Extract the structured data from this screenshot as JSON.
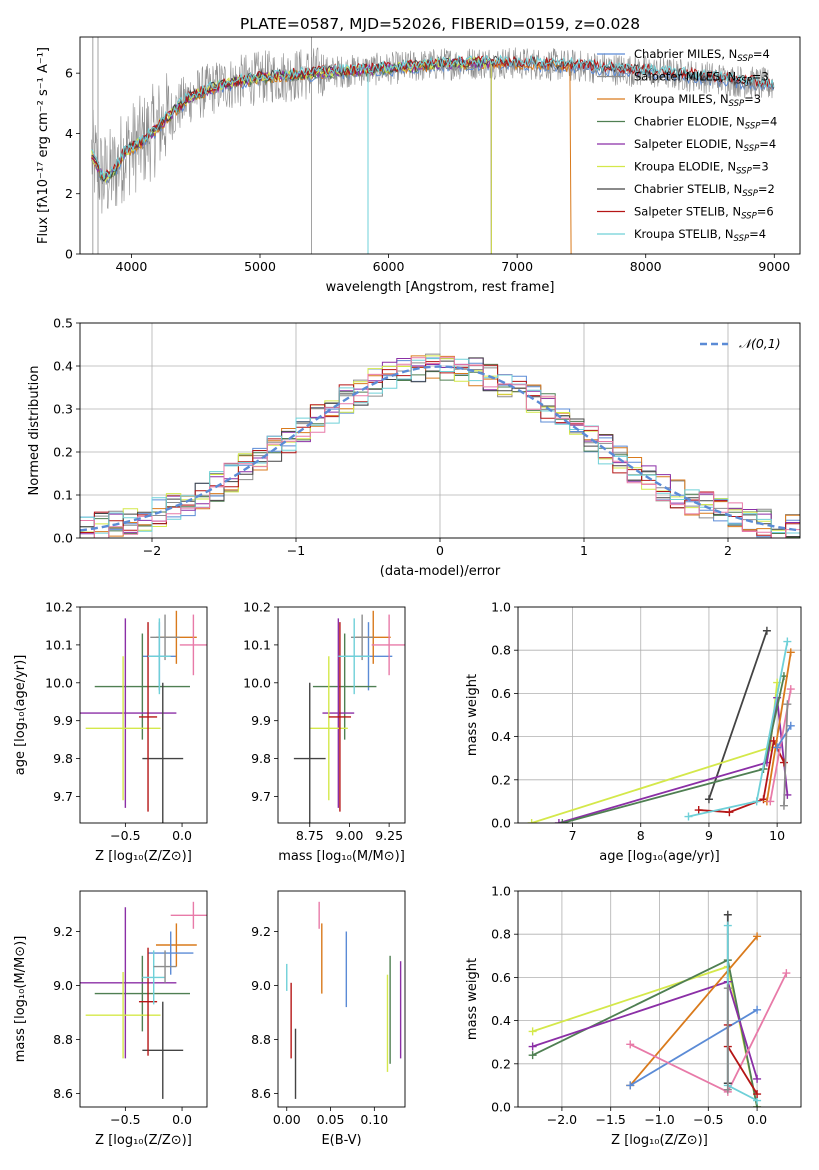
{
  "figure": {
    "title": "PLATE=0587, MJD=52026, FIBERID=0159, z=0.028"
  },
  "colors": {
    "chabrier_miles": "#5b8bd6",
    "salpeter_miles": "#8c8c8c",
    "kroupa_miles": "#d97a1c",
    "chabrier_elodie": "#4f7f52",
    "salpeter_elodie": "#8b2fa6",
    "kroupa_elodie": "#d4e84a",
    "chabrier_stelib": "#444444",
    "salpeter_stelib": "#b51616",
    "kroupa_stelib": "#6fd0d8",
    "pink": "#e87aa8",
    "normal": "#5b8bd6",
    "grid": "#b0b0b0"
  },
  "chart_data": [
    {
      "id": "spectrum",
      "type": "line",
      "xlabel": "wavelength [Angstrom, rest frame]",
      "ylabel": "Flux [fλ10⁻¹⁷ erg cm⁻² s⁻¹ A⁻¹]",
      "xlim": [
        3600,
        9200
      ],
      "ylim": [
        0,
        7.2
      ],
      "xticks": [
        4000,
        5000,
        6000,
        7000,
        8000,
        9000
      ],
      "yticks": [
        0,
        2,
        4,
        6
      ],
      "grid": false,
      "legend_position": "top-right",
      "continuum_knots": {
        "x": [
          3690,
          3780,
          3860,
          3950,
          4080,
          4250,
          4450,
          4700,
          5000,
          5300,
          5600,
          6000,
          6400,
          6800,
          7200,
          7600,
          8000,
          8400,
          8800,
          8990
        ],
        "y": [
          3.3,
          2.5,
          2.7,
          3.4,
          3.7,
          4.4,
          5.2,
          5.6,
          5.85,
          5.95,
          6.05,
          6.15,
          6.3,
          6.35,
          6.3,
          6.2,
          6.05,
          5.9,
          5.7,
          5.6
        ]
      },
      "series": [
        {
          "name": "Chabrier MILES, N",
          "sub": "SSP",
          "suffix": "=4",
          "color_key": "chabrier_miles",
          "xmax": 9000
        },
        {
          "name": "Salpeter MILES, N",
          "sub": "SSP",
          "suffix": "=3",
          "color_key": "salpeter_miles",
          "xmax": 9000
        },
        {
          "name": "Kroupa MILES, N",
          "sub": "SSP",
          "suffix": "=3",
          "color_key": "kroupa_miles",
          "xmax": 7420
        },
        {
          "name": "Chabrier ELODIE, N",
          "sub": "SSP",
          "suffix": "=4",
          "color_key": "chabrier_elodie",
          "xmax": 6800
        },
        {
          "name": "Salpeter ELODIE, N",
          "sub": "SSP",
          "suffix": "=4",
          "color_key": "salpeter_elodie",
          "xmax": 6800
        },
        {
          "name": "Kroupa ELODIE, N",
          "sub": "SSP",
          "suffix": "=3",
          "color_key": "kroupa_elodie",
          "xmax": 6800
        },
        {
          "name": "Chabrier STELIB, N",
          "sub": "SSP",
          "suffix": "=2",
          "color_key": "chabrier_stelib",
          "xmax": 9000
        },
        {
          "name": "Salpeter STELIB, N",
          "sub": "SSP",
          "suffix": "=6",
          "color_key": "salpeter_stelib",
          "xmax": 9000
        },
        {
          "name": "Kroupa STELIB, N",
          "sub": "SSP",
          "suffix": "=4",
          "color_key": "kroupa_stelib",
          "xmax": 9000
        }
      ]
    },
    {
      "id": "residuals",
      "type": "step",
      "xlabel": "(data-model)/error",
      "ylabel": "Normed distribution",
      "xlim": [
        -2.5,
        2.5
      ],
      "ylim": [
        0,
        0.5
      ],
      "xticks": [
        -2,
        -1,
        0,
        1,
        2
      ],
      "yticks": [
        0.0,
        0.1,
        0.2,
        0.3,
        0.4,
        0.5
      ],
      "grid": true,
      "legend_position": "top-right",
      "normal_label": "𝒩(0,1)",
      "bin_width": 0.1,
      "bin_start": -2.5
    },
    {
      "id": "age-vs-Z",
      "type": "errorbar",
      "xlabel": "Z [log₁₀(Z/Z⊙)]",
      "ylabel": "age  [log₁₀(age/yr)]",
      "xlim": [
        -0.9,
        0.22
      ],
      "ylim": [
        9.63,
        10.2
      ],
      "xticks": [
        -0.5,
        0.0
      ],
      "yticks": [
        9.7,
        9.8,
        9.9,
        10.0,
        10.1,
        10.2
      ],
      "points": [
        {
          "c": "chabrier_miles",
          "x": -0.2,
          "y": 10.07,
          "xe": 0.15,
          "ye": 0.09
        },
        {
          "c": "kroupa_miles",
          "x": -0.05,
          "y": 10.12,
          "xe": 0.18,
          "ye": 0.07
        },
        {
          "c": "pink",
          "x": 0.1,
          "y": 10.1,
          "xe": 0.12,
          "ye": 0.08
        },
        {
          "c": "salpeter_miles",
          "x": -0.15,
          "y": 10.12,
          "xe": 0.13,
          "ye": 0.06
        },
        {
          "c": "chabrier_elodie",
          "x": -0.35,
          "y": 9.99,
          "xe": 0.42,
          "ye": 0.14
        },
        {
          "c": "salpeter_elodie",
          "x": -0.5,
          "y": 9.92,
          "xe": 0.45,
          "ye": 0.25
        },
        {
          "c": "kroupa_elodie",
          "x": -0.52,
          "y": 9.88,
          "xe": 0.33,
          "ye": 0.19
        },
        {
          "c": "chabrier_stelib",
          "x": -0.17,
          "y": 9.8,
          "xe": 0.18,
          "ye": 0.2
        },
        {
          "c": "salpeter_stelib",
          "x": -0.3,
          "y": 9.91,
          "xe": 0.08,
          "ye": 0.25
        },
        {
          "c": "kroupa_stelib",
          "x": -0.2,
          "y": 10.07,
          "xe": 0.1,
          "ye": 0.1
        }
      ]
    },
    {
      "id": "age-vs-mass",
      "type": "errorbar",
      "xlabel": "mass [log₁₀(M/M⊙)]",
      "ylabel": "",
      "xlim": [
        8.55,
        9.35
      ],
      "ylim": [
        9.63,
        10.2
      ],
      "xticks": [
        8.75,
        9.0,
        9.25
      ],
      "yticks": [
        9.7,
        9.8,
        9.9,
        10.0,
        10.1,
        10.2
      ],
      "points": [
        {
          "c": "chabrier_miles",
          "x": 9.12,
          "y": 10.07,
          "xe": 0.15,
          "ye": 0.09
        },
        {
          "c": "kroupa_miles",
          "x": 9.15,
          "y": 10.12,
          "xe": 0.11,
          "ye": 0.07
        },
        {
          "c": "pink",
          "x": 9.25,
          "y": 10.1,
          "xe": 0.11,
          "ye": 0.08
        },
        {
          "c": "salpeter_miles",
          "x": 9.08,
          "y": 10.12,
          "xe": 0.07,
          "ye": 0.06
        },
        {
          "c": "chabrier_elodie",
          "x": 8.97,
          "y": 9.99,
          "xe": 0.2,
          "ye": 0.14
        },
        {
          "c": "salpeter_elodie",
          "x": 8.93,
          "y": 9.92,
          "xe": 0.1,
          "ye": 0.25
        },
        {
          "c": "kroupa_elodie",
          "x": 8.87,
          "y": 9.88,
          "xe": 0.12,
          "ye": 0.19
        },
        {
          "c": "chabrier_stelib",
          "x": 8.75,
          "y": 9.8,
          "xe": 0.1,
          "ye": 0.2
        },
        {
          "c": "salpeter_stelib",
          "x": 8.94,
          "y": 9.91,
          "xe": 0.07,
          "ye": 0.25
        },
        {
          "c": "kroupa_stelib",
          "x": 9.03,
          "y": 10.07,
          "xe": 0.1,
          "ye": 0.1
        }
      ]
    },
    {
      "id": "weight-vs-age",
      "type": "line",
      "xlabel": "age  [log₁₀(age/yr)]",
      "ylabel": "mass weight",
      "xlim": [
        6.2,
        10.35
      ],
      "ylim": [
        0,
        1.0
      ],
      "xticks": [
        7,
        8,
        9,
        10
      ],
      "yticks": [
        0.0,
        0.2,
        0.4,
        0.6,
        0.8,
        1.0
      ],
      "grid": true,
      "series": [
        {
          "c": "chabrier_stelib",
          "x": [
            9.0,
            9.85
          ],
          "y": [
            0.11,
            0.89
          ]
        },
        {
          "c": "kroupa_elodie",
          "x": [
            6.4,
            9.9,
            10.0
          ],
          "y": [
            0.0,
            0.35,
            0.65
          ]
        },
        {
          "c": "salpeter_elodie",
          "x": [
            6.8,
            9.85,
            10.0,
            10.15
          ],
          "y": [
            0.0,
            0.28,
            0.58,
            0.13
          ]
        },
        {
          "c": "chabrier_elodie",
          "x": [
            6.85,
            9.8,
            10.1
          ],
          "y": [
            0.0,
            0.25,
            0.68
          ]
        },
        {
          "c": "salpeter_stelib",
          "x": [
            8.85,
            9.3,
            9.8,
            9.95,
            10.1
          ],
          "y": [
            0.06,
            0.05,
            0.11,
            0.38,
            0.28
          ]
        },
        {
          "c": "kroupa_stelib",
          "x": [
            8.7,
            9.7,
            10.15
          ],
          "y": [
            0.03,
            0.1,
            0.84
          ]
        },
        {
          "c": "kroupa_miles",
          "x": [
            9.85,
            10.2
          ],
          "y": [
            0.1,
            0.79
          ]
        },
        {
          "c": "pink",
          "x": [
            9.9,
            10.2
          ],
          "y": [
            0.1,
            0.62
          ]
        },
        {
          "c": "chabrier_miles",
          "x": [
            10.0,
            10.2
          ],
          "y": [
            0.35,
            0.45
          ]
        },
        {
          "c": "salpeter_miles",
          "x": [
            10.1,
            10.15
          ],
          "y": [
            0.08,
            0.55
          ]
        }
      ]
    },
    {
      "id": "mass-vs-Z",
      "type": "errorbar",
      "xlabel": "Z [log₁₀(Z/Z⊙)]",
      "ylabel": "mass [log₁₀(M/M⊙)]",
      "xlim": [
        -0.9,
        0.22
      ],
      "ylim": [
        8.55,
        9.35
      ],
      "xticks": [
        -0.5,
        0.0
      ],
      "yticks": [
        8.6,
        8.8,
        9.0,
        9.2
      ],
      "points": [
        {
          "c": "pink",
          "x": 0.1,
          "y": 9.26,
          "xe": 0.2,
          "ye": 0.05
        },
        {
          "c": "kroupa_miles",
          "x": -0.05,
          "y": 9.15,
          "xe": 0.18,
          "ye": 0.08
        },
        {
          "c": "chabrier_miles",
          "x": -0.1,
          "y": 9.12,
          "xe": 0.2,
          "ye": 0.08
        },
        {
          "c": "chabrier_elodie",
          "x": -0.35,
          "y": 8.97,
          "xe": 0.42,
          "ye": 0.14
        },
        {
          "c": "salpeter_elodie",
          "x": -0.5,
          "y": 9.01,
          "xe": 0.45,
          "ye": 0.28
        },
        {
          "c": "kroupa_elodie",
          "x": -0.52,
          "y": 8.89,
          "xe": 0.33,
          "ye": 0.16
        },
        {
          "c": "chabrier_stelib",
          "x": -0.17,
          "y": 8.76,
          "xe": 0.18,
          "ye": 0.18
        },
        {
          "c": "salpeter_stelib",
          "x": -0.3,
          "y": 8.94,
          "xe": 0.08,
          "ye": 0.2
        },
        {
          "c": "kroupa_stelib",
          "x": -0.25,
          "y": 9.03,
          "xe": 0.1,
          "ye": 0.1
        },
        {
          "c": "salpeter_miles",
          "x": -0.15,
          "y": 9.07,
          "xe": 0.1,
          "ye": 0.06
        }
      ]
    },
    {
      "id": "mass-vs-ebv",
      "type": "errorbar",
      "xlabel": "E(B-V)",
      "ylabel": "",
      "xlim": [
        -0.01,
        0.135
      ],
      "ylim": [
        8.55,
        9.35
      ],
      "xticks": [
        0.0,
        0.05,
        0.1
      ],
      "yticks": [
        8.6,
        8.8,
        9.0,
        9.2
      ],
      "points": [
        {
          "c": "kroupa_stelib",
          "x": 0.0,
          "y": 9.03,
          "xe": 0,
          "ye": 0.05
        },
        {
          "c": "salpeter_stelib",
          "x": 0.005,
          "y": 8.87,
          "xe": 0,
          "ye": 0.14
        },
        {
          "c": "chabrier_stelib",
          "x": 0.01,
          "y": 8.71,
          "xe": 0,
          "ye": 0.13
        },
        {
          "c": "pink",
          "x": 0.037,
          "y": 9.26,
          "xe": 0,
          "ye": 0.05
        },
        {
          "c": "kroupa_miles",
          "x": 0.04,
          "y": 9.1,
          "xe": 0,
          "ye": 0.13
        },
        {
          "c": "chabrier_miles",
          "x": 0.068,
          "y": 9.06,
          "xe": 0,
          "ye": 0.14
        },
        {
          "c": "kroupa_elodie",
          "x": 0.115,
          "y": 8.86,
          "xe": 0,
          "ye": 0.18
        },
        {
          "c": "chabrier_elodie",
          "x": 0.118,
          "y": 8.91,
          "xe": 0,
          "ye": 0.2
        },
        {
          "c": "salpeter_elodie",
          "x": 0.13,
          "y": 8.91,
          "xe": 0,
          "ye": 0.18
        }
      ]
    },
    {
      "id": "weight-vs-Z",
      "type": "line",
      "xlabel": "Z [log₁₀(Z/Z⊙)]",
      "ylabel": "mass weight",
      "xlim": [
        -2.45,
        0.45
      ],
      "ylim": [
        0,
        1.0
      ],
      "xticks": [
        -2.0,
        -1.5,
        -1.0,
        -0.5,
        0.0
      ],
      "yticks": [
        0.0,
        0.2,
        0.4,
        0.6,
        0.8,
        1.0
      ],
      "grid": true,
      "series": [
        {
          "c": "kroupa_elodie",
          "x": [
            -2.3,
            -0.3,
            0.0
          ],
          "y": [
            0.35,
            0.65,
            0.0
          ]
        },
        {
          "c": "chabrier_elodie",
          "x": [
            -2.3,
            -0.3,
            0.0
          ],
          "y": [
            0.24,
            0.68,
            0.0
          ]
        },
        {
          "c": "salpeter_elodie",
          "x": [
            -2.3,
            -0.3,
            0.0
          ],
          "y": [
            0.28,
            0.58,
            0.13
          ]
        },
        {
          "c": "kroupa_miles",
          "x": [
            -1.3,
            0.0
          ],
          "y": [
            0.1,
            0.79
          ]
        },
        {
          "c": "chabrier_miles",
          "x": [
            -1.3,
            0.0
          ],
          "y": [
            0.1,
            0.45
          ]
        },
        {
          "c": "pink",
          "x": [
            -1.3,
            -0.3,
            0.3
          ],
          "y": [
            0.29,
            0.07,
            0.62
          ]
        },
        {
          "c": "chabrier_stelib",
          "x": [
            -0.3,
            -0.3
          ],
          "y": [
            0.11,
            0.89
          ]
        },
        {
          "c": "kroupa_stelib",
          "x": [
            -0.3,
            -0.3,
            0.0
          ],
          "y": [
            0.84,
            0.1,
            0.03
          ]
        },
        {
          "c": "salpeter_stelib",
          "x": [
            -0.3,
            -0.3,
            0.0
          ],
          "y": [
            0.38,
            0.28,
            0.06
          ]
        },
        {
          "c": "salpeter_miles",
          "x": [
            -0.3,
            -0.3
          ],
          "y": [
            0.08,
            0.55
          ]
        }
      ]
    }
  ]
}
